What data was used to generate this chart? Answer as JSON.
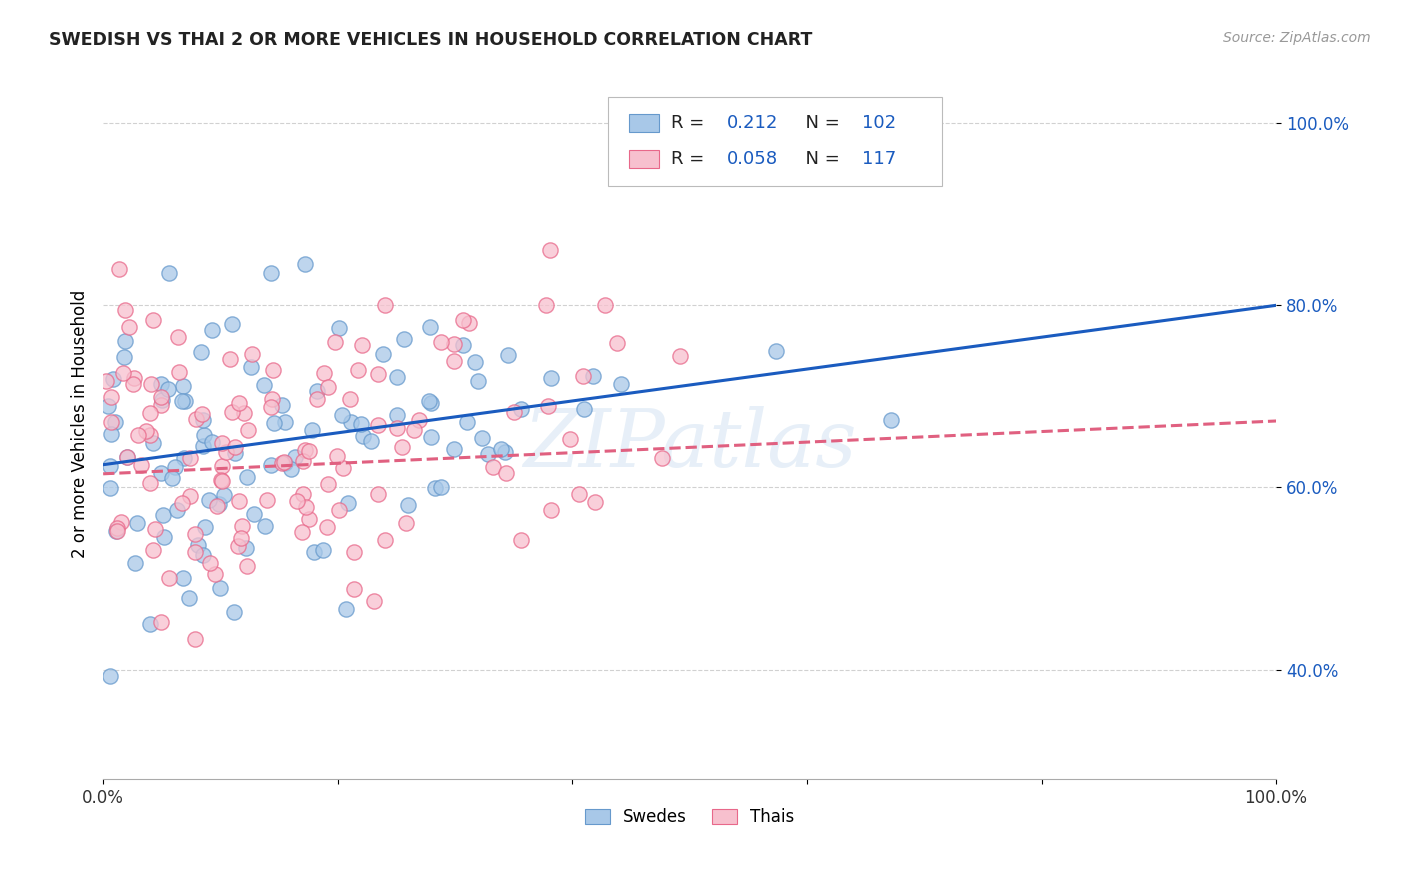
{
  "title": "SWEDISH VS THAI 2 OR MORE VEHICLES IN HOUSEHOLD CORRELATION CHART",
  "source": "Source: ZipAtlas.com",
  "ylabel": "2 or more Vehicles in Household",
  "xlim": [
    0.0,
    1.0
  ],
  "ylim": [
    0.28,
    1.06
  ],
  "ytick_positions": [
    0.4,
    0.6,
    0.8,
    1.0
  ],
  "yticklabels": [
    "40.0%",
    "60.0%",
    "80.0%",
    "100.0%"
  ],
  "xtick_positions": [
    0.0,
    0.2,
    0.4,
    0.6,
    0.8,
    1.0
  ],
  "xticklabels": [
    "0.0%",
    "",
    "",
    "",
    "",
    "100.0%"
  ],
  "swedish_color": "#a8c8e8",
  "swedish_edge_color": "#6699cc",
  "thai_color": "#f7c0ce",
  "thai_edge_color": "#e8688a",
  "swedish_line_color": "#1a5bbf",
  "thai_line_color": "#e06080",
  "tick_color": "#1a5bbf",
  "R_swedish": 0.212,
  "N_swedish": 102,
  "R_thai": 0.058,
  "N_thai": 117,
  "swedish_intercept": 0.625,
  "swedish_slope": 0.175,
  "thai_intercept": 0.615,
  "thai_slope": 0.058,
  "watermark": "ZIPatlas",
  "background_color": "#ffffff",
  "grid_color": "#cccccc"
}
